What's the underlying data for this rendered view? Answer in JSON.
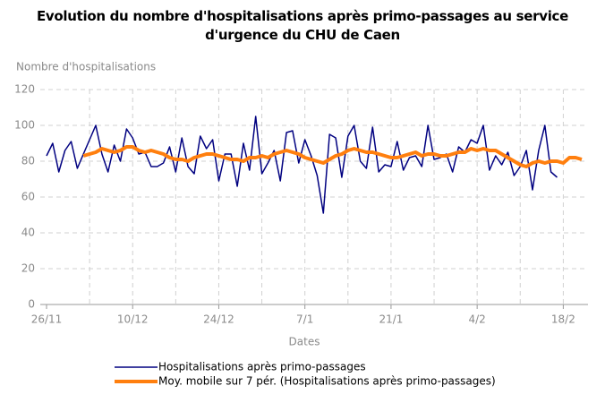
{
  "chart_data": {
    "type": "line",
    "title": "Evolution du nombre d'hospitalisations après primo-passages au service d'urgence du CHU de Caen",
    "y_label": "Nombre d'hospitalisations",
    "x_label": "Dates",
    "categories": [
      "26/11",
      null,
      null,
      null,
      null,
      null,
      null,
      null,
      null,
      null,
      null,
      null,
      null,
      null,
      "10/12",
      null,
      null,
      null,
      null,
      null,
      null,
      null,
      null,
      null,
      null,
      null,
      null,
      null,
      "24/12",
      null,
      null,
      null,
      null,
      null,
      null,
      null,
      null,
      null,
      null,
      null,
      null,
      null,
      "7/1",
      null,
      null,
      null,
      null,
      null,
      null,
      null,
      null,
      null,
      null,
      null,
      null,
      null,
      "21/1",
      null,
      null,
      null,
      null,
      null,
      null,
      null,
      null,
      null,
      null,
      null,
      null,
      null,
      "4/2",
      null,
      null,
      null,
      null,
      null,
      null,
      null,
      null,
      null,
      null,
      null,
      null,
      null,
      "18/2",
      null,
      null,
      null
    ],
    "series": [
      {
        "name": "Hospitalisations après primo-passages",
        "color": "#000080",
        "width": 1.5,
        "values": [
          83,
          90,
          74,
          86,
          91,
          76,
          84,
          92,
          100,
          84,
          74,
          89,
          80,
          98,
          93,
          84,
          85,
          77,
          77,
          79,
          88,
          74,
          93,
          77,
          73,
          94,
          87,
          92,
          69,
          84,
          84,
          66,
          90,
          75,
          105,
          73,
          79,
          86,
          69,
          96,
          97,
          79,
          92,
          83,
          72,
          51,
          95,
          93,
          71,
          94,
          100,
          80,
          76,
          99,
          74,
          78,
          77,
          91,
          75,
          82,
          83,
          77,
          100,
          81,
          82,
          84,
          74,
          88,
          85,
          92,
          90,
          100,
          75,
          83,
          78,
          85,
          72,
          77,
          86,
          64,
          86,
          100,
          74,
          71,
          null,
          null,
          null,
          null
        ]
      },
      {
        "name": "Moy. mobile sur 7 pér. (Hospitalisations après primo-passages)",
        "color": "#ff7f0e",
        "width": 4,
        "values": [
          null,
          null,
          null,
          null,
          null,
          null,
          83,
          84,
          85,
          87,
          86,
          85,
          86,
          88,
          88,
          86,
          85,
          86,
          85,
          84,
          82,
          81,
          81,
          80,
          82,
          83,
          84,
          84,
          83,
          82,
          81,
          81,
          80,
          82,
          82,
          83,
          82,
          84,
          85,
          86,
          85,
          84,
          82,
          81,
          80,
          79,
          81,
          83,
          84,
          86,
          87,
          86,
          85,
          85,
          84,
          83,
          82,
          82,
          83,
          84,
          85,
          83,
          84,
          84,
          83,
          83,
          84,
          85,
          85,
          87,
          86,
          87,
          86,
          86,
          84,
          82,
          80,
          78,
          77,
          79,
          80,
          79,
          80,
          80,
          79,
          82,
          82,
          81
        ]
      }
    ],
    "ylim": [
      0,
      120
    ],
    "yticks": [
      0,
      20,
      40,
      60,
      80,
      100,
      120
    ],
    "grid": true
  }
}
